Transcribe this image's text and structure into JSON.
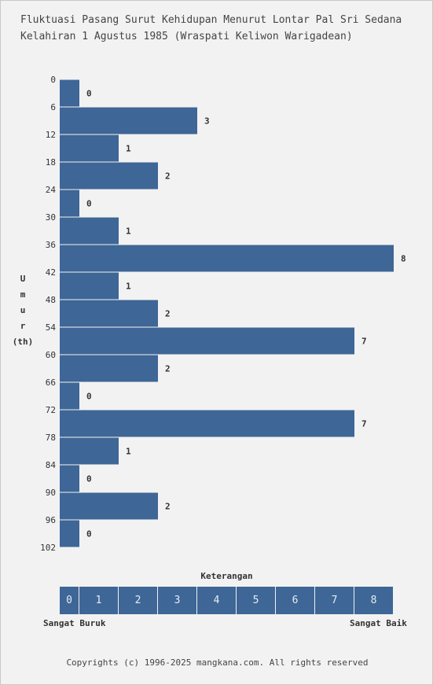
{
  "title_lines": [
    "Fluktuasi Pasang Surut Kehidupan Menurut Lontar Pal Sri Sedana",
    "Kelahiran 1 Agustus 1985 (Wraspati Keliwon Warigadean)"
  ],
  "y_axis_label_letters": [
    "U",
    "m",
    "u",
    "r"
  ],
  "y_axis_unit": "(th)",
  "legend": {
    "title": "Keterangan",
    "levels": [
      "0",
      "1",
      "2",
      "3",
      "4",
      "5",
      "6",
      "7",
      "8"
    ],
    "low_label": "Sangat Buruk",
    "high_label": "Sangat Baik"
  },
  "footer": "Copyrights (c) 1996-2025 mangkana.com. All rights reserved",
  "colors": {
    "bar": "#3e6696",
    "background": "#f2f2f2"
  },
  "chart_data": {
    "type": "bar",
    "orientation": "horizontal",
    "title": "Fluktuasi Pasang Surut Kehidupan Menurut Lontar Pal Sri Sedana Kelahiran 1 Agustus 1985 (Wraspati Keliwon Warigadean)",
    "ylabel": "Umur (th)",
    "y_ticks": [
      0,
      6,
      12,
      18,
      24,
      30,
      36,
      42,
      48,
      54,
      60,
      66,
      72,
      78,
      84,
      90,
      96,
      102
    ],
    "age_ranges": [
      [
        0,
        6
      ],
      [
        6,
        12
      ],
      [
        12,
        18
      ],
      [
        18,
        24
      ],
      [
        24,
        30
      ],
      [
        30,
        36
      ],
      [
        36,
        42
      ],
      [
        42,
        48
      ],
      [
        48,
        54
      ],
      [
        54,
        60
      ],
      [
        60,
        66
      ],
      [
        66,
        72
      ],
      [
        72,
        78
      ],
      [
        78,
        84
      ],
      [
        84,
        90
      ],
      [
        90,
        96
      ],
      [
        96,
        102
      ]
    ],
    "values": [
      0,
      3,
      1,
      2,
      0,
      1,
      8,
      1,
      2,
      7,
      2,
      0,
      7,
      1,
      0,
      2,
      0
    ],
    "xlim": [
      0,
      8
    ]
  }
}
